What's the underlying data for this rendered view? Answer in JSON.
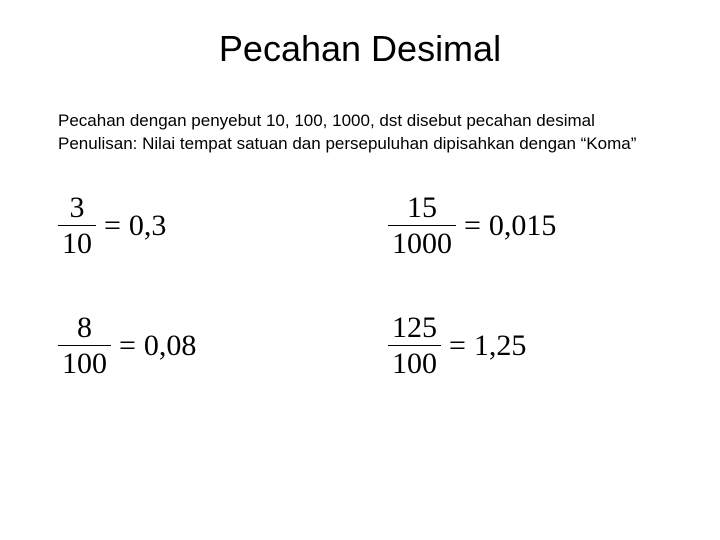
{
  "title": "Pecahan Desimal",
  "description_line1": "Pecahan dengan penyebut 10, 100, 1000, dst disebut pecahan desimal",
  "description_line2": "Penulisan: Nilai tempat satuan dan persepuluhan dipisahkan dengan “Koma”",
  "eq1": {
    "num": "3",
    "den": "10",
    "result": "0,3"
  },
  "eq2": {
    "num": "15",
    "den": "1000",
    "result": "0,015"
  },
  "eq3": {
    "num": "8",
    "den": "100",
    "result": "0,08"
  },
  "eq4": {
    "num": "125",
    "den": "100",
    "result": "1,25"
  },
  "equals": "="
}
